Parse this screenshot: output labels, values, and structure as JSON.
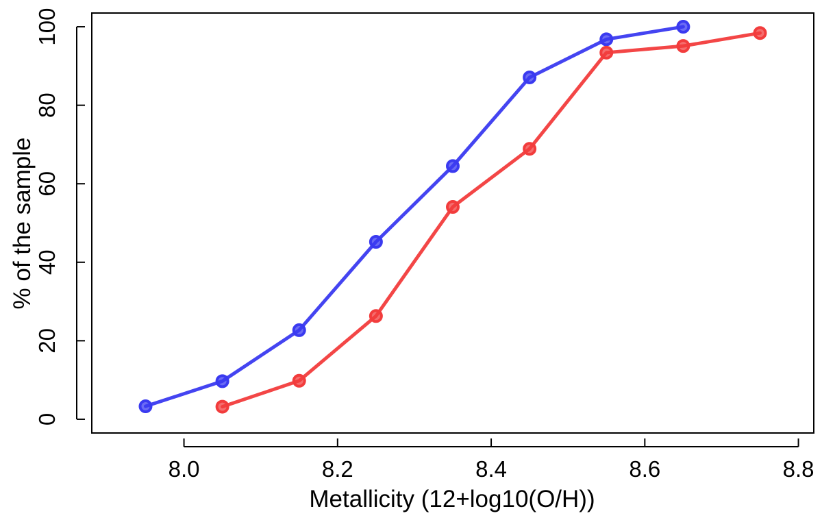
{
  "chart_data": {
    "type": "line",
    "title": "",
    "xlabel": "Metallicity (12+log10(O/H))",
    "ylabel": "% of the sample",
    "xlim": [
      7.88,
      8.82
    ],
    "ylim": [
      -3.5,
      103.5
    ],
    "xticks": [
      8.0,
      8.2,
      8.4,
      8.6,
      8.8
    ],
    "xtick_labels": [
      "8.0",
      "8.2",
      "8.4",
      "8.6",
      "8.8"
    ],
    "yticks": [
      0,
      20,
      40,
      60,
      80,
      100
    ],
    "ytick_labels": [
      "0",
      "20",
      "40",
      "60",
      "80",
      "100"
    ],
    "grid": false,
    "legend": null,
    "series": [
      {
        "name": "blue",
        "color": "#3a3af0",
        "x": [
          7.95,
          8.05,
          8.15,
          8.25,
          8.35,
          8.45,
          8.55,
          8.65
        ],
        "y": [
          3.3,
          9.7,
          22.7,
          45.2,
          64.5,
          87.1,
          96.8,
          100.0
        ]
      },
      {
        "name": "red",
        "color": "#f23c3c",
        "x": [
          8.05,
          8.15,
          8.25,
          8.35,
          8.45,
          8.55,
          8.65,
          8.75
        ],
        "y": [
          3.2,
          9.8,
          26.3,
          54.1,
          68.9,
          93.4,
          95.1,
          98.4
        ]
      }
    ]
  }
}
